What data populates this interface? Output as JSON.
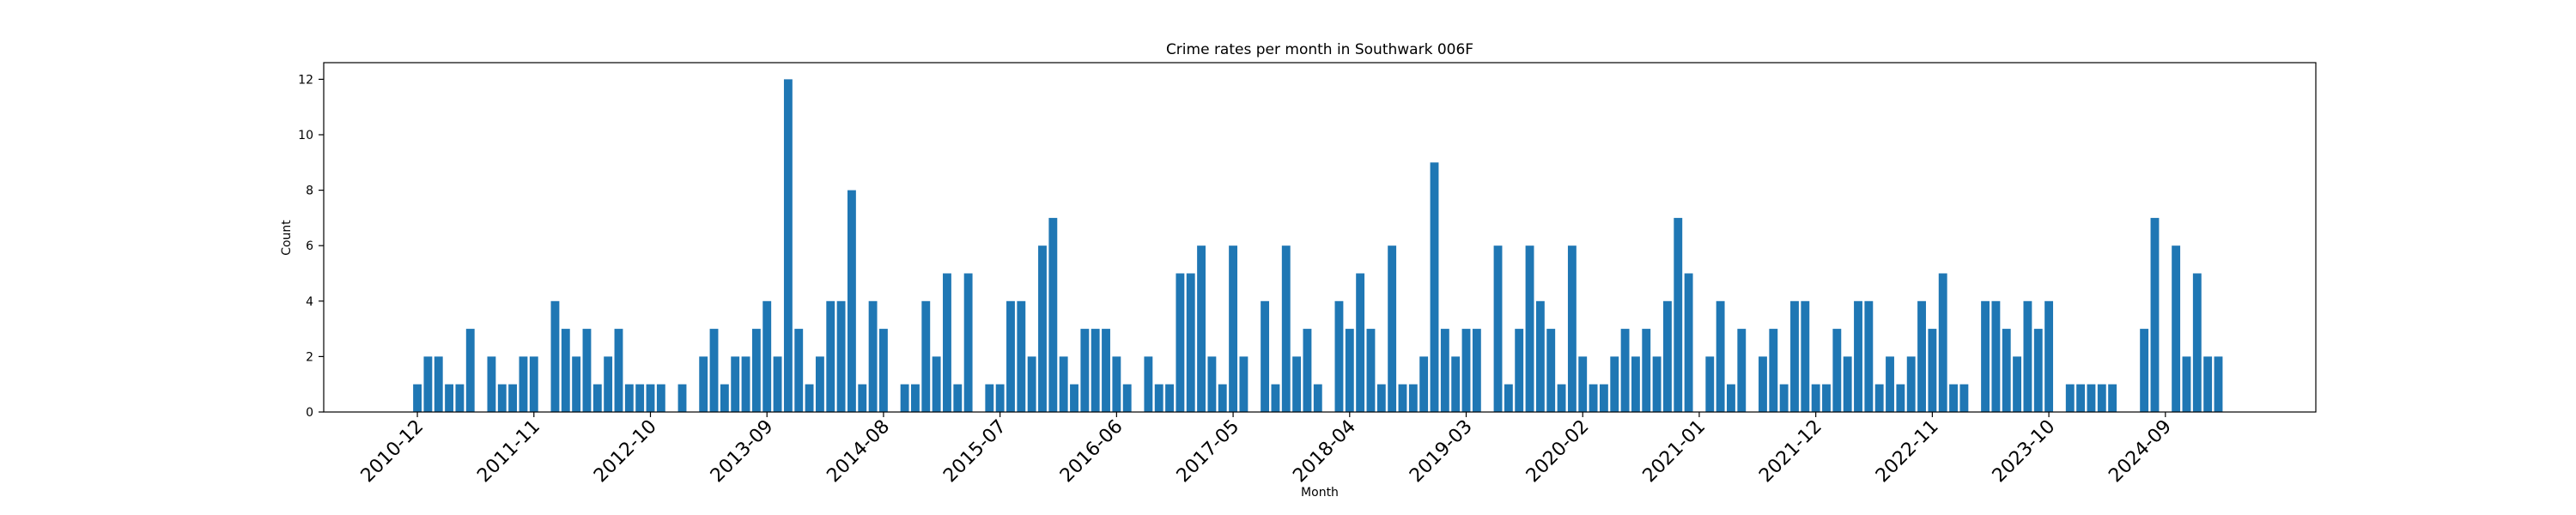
{
  "chart_data": {
    "type": "bar",
    "title": "Crime rates per month in Southwark 006F",
    "x_label": "Month",
    "y_label": "Count",
    "color": "#1f77b4",
    "categories": [
      "2010-12",
      null,
      null,
      null,
      null,
      null,
      null,
      null,
      null,
      null,
      null,
      "2011-11",
      null,
      null,
      null,
      null,
      null,
      null,
      null,
      null,
      null,
      null,
      "2012-10",
      null,
      null,
      null,
      null,
      null,
      null,
      null,
      null,
      null,
      null,
      "2013-09",
      null,
      null,
      null,
      null,
      null,
      null,
      null,
      null,
      null,
      null,
      "2014-08",
      null,
      null,
      null,
      null,
      null,
      null,
      null,
      null,
      null,
      null,
      "2015-07",
      null,
      null,
      null,
      null,
      null,
      null,
      null,
      null,
      null,
      null,
      "2016-06",
      null,
      null,
      null,
      null,
      null,
      null,
      null,
      null,
      null,
      null,
      "2017-05",
      null,
      null,
      null,
      null,
      null,
      null,
      null,
      null,
      null,
      null,
      "2018-04",
      null,
      null,
      null,
      null,
      null,
      null,
      null,
      null,
      null,
      null,
      "2019-03",
      null,
      null,
      null,
      null,
      null,
      null,
      null,
      null,
      null,
      null,
      "2020-02",
      null,
      null,
      null,
      null,
      null,
      null,
      null,
      null,
      null,
      null,
      "2021-01",
      null,
      null,
      null,
      null,
      null,
      null,
      null,
      null,
      null,
      null,
      "2021-12",
      null,
      null,
      null,
      null,
      null,
      null,
      null,
      null,
      null,
      null,
      "2022-11",
      null,
      null,
      null,
      null,
      null,
      null,
      null,
      null,
      null,
      null,
      "2023-10",
      null,
      null,
      null,
      null,
      null,
      null,
      null,
      null,
      null,
      null,
      "2024-09",
      null,
      null,
      null,
      null,
      null
    ],
    "values": [
      1,
      2,
      2,
      1,
      1,
      3,
      0,
      2,
      1,
      1,
      2,
      2,
      0,
      4,
      3,
      2,
      3,
      1,
      2,
      3,
      1,
      1,
      1,
      1,
      0,
      1,
      0,
      2,
      3,
      1,
      2,
      2,
      3,
      4,
      2,
      12,
      3,
      1,
      2,
      4,
      4,
      8,
      1,
      4,
      3,
      0,
      1,
      1,
      4,
      2,
      5,
      1,
      5,
      0,
      1,
      1,
      4,
      4,
      2,
      6,
      7,
      2,
      1,
      3,
      3,
      3,
      2,
      1,
      0,
      2,
      1,
      1,
      5,
      5,
      6,
      2,
      1,
      6,
      2,
      0,
      4,
      1,
      6,
      2,
      3,
      1,
      0,
      4,
      3,
      5,
      3,
      1,
      6,
      1,
      1,
      2,
      9,
      3,
      2,
      3,
      3,
      0,
      6,
      1,
      3,
      6,
      4,
      3,
      1,
      6,
      2,
      1,
      1,
      2,
      3,
      2,
      3,
      2,
      4,
      7,
      5,
      0,
      2,
      4,
      1,
      3,
      0,
      2,
      3,
      1,
      4,
      4,
      1,
      1,
      3,
      2,
      4,
      4,
      1,
      2,
      1,
      2,
      4,
      3,
      5,
      1,
      1,
      0,
      4,
      4,
      3,
      2,
      4,
      3,
      4,
      0,
      1,
      1,
      1,
      1,
      1,
      0,
      0,
      3,
      7,
      0,
      6,
      2,
      5,
      2,
      2
    ],
    "ylim": [
      0,
      12.6
    ],
    "yticks": [
      0,
      2,
      4,
      6,
      8,
      10,
      12
    ]
  }
}
